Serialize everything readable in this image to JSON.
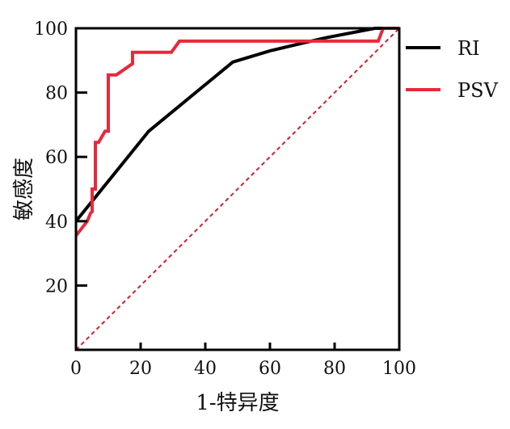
{
  "chart_data": {
    "type": "line",
    "title": "",
    "xlabel": "1-特异度",
    "ylabel": "敏感度",
    "xlim": [
      0,
      100
    ],
    "ylim": [
      0,
      100
    ],
    "x_ticks": [
      "0",
      "20",
      "40",
      "60",
      "80",
      "100"
    ],
    "y_ticks": [
      "20",
      "40",
      "60",
      "80",
      "100"
    ],
    "grid": false,
    "legend_position": "right",
    "series": [
      {
        "name": "RI",
        "color": "#000000",
        "x": [
          0,
          22.5,
          48.5,
          60,
          77,
          92.5,
          100
        ],
        "y": [
          40,
          68,
          89.5,
          93,
          97,
          100,
          100
        ]
      },
      {
        "name": "PSV",
        "color": "#e8283c",
        "x": [
          0,
          3.5,
          4.5,
          5,
          5,
          6,
          6,
          7,
          7,
          9,
          10,
          10,
          12.5,
          17.5,
          17.5,
          29.5,
          32,
          77,
          93.5,
          95,
          100
        ],
        "y": [
          35.5,
          40,
          42.5,
          43,
          50,
          50,
          64.5,
          64.5,
          64.5,
          68,
          68,
          85.5,
          85.5,
          89,
          92.5,
          92.5,
          96,
          96,
          96,
          100,
          100
        ]
      }
    ],
    "reference_line": {
      "color": "#d0202e",
      "x": [
        0,
        100
      ],
      "y": [
        0,
        100
      ]
    }
  }
}
